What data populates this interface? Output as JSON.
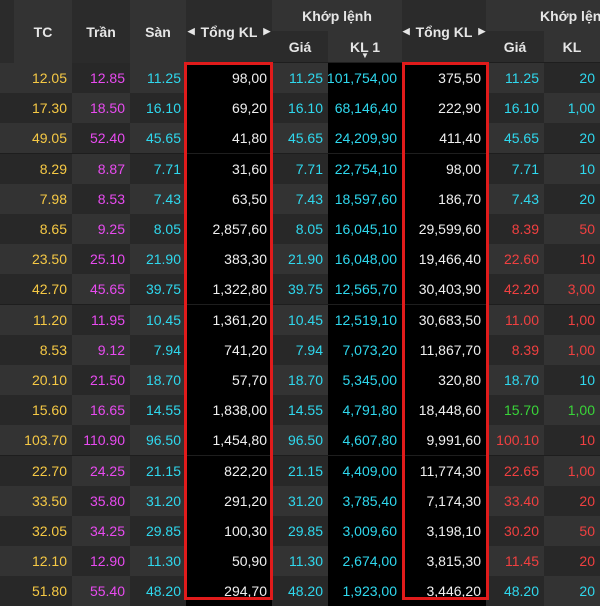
{
  "header": {
    "tc": "TC",
    "tran": "Trần",
    "san": "Sàn",
    "tong_kl_1": "Tổng KL",
    "khop_lenh_1": "Khớp lệnh",
    "gia_1": "Giá",
    "kl1": "KL 1",
    "tong_kl_2": "Tổng KL",
    "khop_lenh_2": "Khớp lệnh",
    "gia_2": "Giá",
    "kl_2": "KL"
  },
  "colors": {
    "ref": "#f6c945",
    "ceiling": "#e84bf0",
    "floor": "#2fd8ee",
    "neutral": "#f0f0f0",
    "down": "#f04040",
    "up": "#39d439",
    "highlight_box": "#e01b1b"
  },
  "rows": [
    {
      "tc": "12.05",
      "tran": "12.85",
      "san": "11.25",
      "tong_kl": "98,00",
      "gia": "11.25",
      "kl1": "101,754,00",
      "tong_kl2": "375,50",
      "gia2": "11.25",
      "gia2_color": "cyan",
      "kl2": "20",
      "kl2_color": "cyan"
    },
    {
      "tc": "17.30",
      "tran": "18.50",
      "san": "16.10",
      "tong_kl": "69,20",
      "gia": "16.10",
      "kl1": "68,146,40",
      "tong_kl2": "222,90",
      "gia2": "16.10",
      "gia2_color": "cyan",
      "kl2": "1,00",
      "kl2_color": "cyan"
    },
    {
      "tc": "49.05",
      "tran": "52.40",
      "san": "45.65",
      "tong_kl": "41,80",
      "gia": "45.65",
      "kl1": "24,209,90",
      "tong_kl2": "411,40",
      "gia2": "45.65",
      "gia2_color": "cyan",
      "kl2": "20",
      "kl2_color": "cyan"
    },
    {
      "tc": "8.29",
      "tran": "8.87",
      "san": "7.71",
      "tong_kl": "31,60",
      "gia": "7.71",
      "kl1": "22,754,10",
      "tong_kl2": "98,00",
      "gia2": "7.71",
      "gia2_color": "cyan",
      "kl2": "10",
      "kl2_color": "cyan"
    },
    {
      "tc": "7.98",
      "tran": "8.53",
      "san": "7.43",
      "tong_kl": "63,50",
      "gia": "7.43",
      "kl1": "18,597,60",
      "tong_kl2": "186,70",
      "gia2": "7.43",
      "gia2_color": "cyan",
      "kl2": "20",
      "kl2_color": "cyan"
    },
    {
      "tc": "8.65",
      "tran": "9.25",
      "san": "8.05",
      "tong_kl": "2,857,60",
      "gia": "8.05",
      "kl1": "16,045,10",
      "tong_kl2": "29,599,60",
      "gia2": "8.39",
      "gia2_color": "red",
      "kl2": "50",
      "kl2_color": "red"
    },
    {
      "tc": "23.50",
      "tran": "25.10",
      "san": "21.90",
      "tong_kl": "383,30",
      "gia": "21.90",
      "kl1": "16,048,00",
      "tong_kl2": "19,466,40",
      "gia2": "22.60",
      "gia2_color": "red",
      "kl2": "10",
      "kl2_color": "red"
    },
    {
      "tc": "42.70",
      "tran": "45.65",
      "san": "39.75",
      "tong_kl": "1,322,80",
      "gia": "39.75",
      "kl1": "12,565,70",
      "tong_kl2": "30,403,90",
      "gia2": "42.20",
      "gia2_color": "red",
      "kl2": "3,00",
      "kl2_color": "red"
    },
    {
      "tc": "11.20",
      "tran": "11.95",
      "san": "10.45",
      "tong_kl": "1,361,20",
      "gia": "10.45",
      "kl1": "12,519,10",
      "tong_kl2": "30,683,50",
      "gia2": "11.00",
      "gia2_color": "red",
      "kl2": "1,00",
      "kl2_color": "red"
    },
    {
      "tc": "8.53",
      "tran": "9.12",
      "san": "7.94",
      "tong_kl": "741,20",
      "gia": "7.94",
      "kl1": "7,073,20",
      "tong_kl2": "11,867,70",
      "gia2": "8.39",
      "gia2_color": "red",
      "kl2": "1,00",
      "kl2_color": "red"
    },
    {
      "tc": "20.10",
      "tran": "21.50",
      "san": "18.70",
      "tong_kl": "57,70",
      "gia": "18.70",
      "kl1": "5,345,00",
      "tong_kl2": "320,80",
      "gia2": "18.70",
      "gia2_color": "cyan",
      "kl2": "10",
      "kl2_color": "cyan"
    },
    {
      "tc": "15.60",
      "tran": "16.65",
      "san": "14.55",
      "tong_kl": "1,838,00",
      "gia": "14.55",
      "kl1": "4,791,80",
      "tong_kl2": "18,448,60",
      "gia2": "15.70",
      "gia2_color": "green",
      "kl2": "1,00",
      "kl2_color": "green"
    },
    {
      "tc": "103.70",
      "tran": "110.90",
      "san": "96.50",
      "tong_kl": "1,454,80",
      "gia": "96.50",
      "kl1": "4,607,80",
      "tong_kl2": "9,991,60",
      "gia2": "100.10",
      "gia2_color": "red",
      "kl2": "10",
      "kl2_color": "red"
    },
    {
      "tc": "22.70",
      "tran": "24.25",
      "san": "21.15",
      "tong_kl": "822,20",
      "gia": "21.15",
      "kl1": "4,409,00",
      "tong_kl2": "11,774,30",
      "gia2": "22.65",
      "gia2_color": "red",
      "kl2": "1,00",
      "kl2_color": "red"
    },
    {
      "tc": "33.50",
      "tran": "35.80",
      "san": "31.20",
      "tong_kl": "291,20",
      "gia": "31.20",
      "kl1": "3,785,40",
      "tong_kl2": "7,174,30",
      "gia2": "33.40",
      "gia2_color": "red",
      "kl2": "20",
      "kl2_color": "red"
    },
    {
      "tc": "32.05",
      "tran": "34.25",
      "san": "29.85",
      "tong_kl": "100,30",
      "gia": "29.85",
      "kl1": "3,009,60",
      "tong_kl2": "3,198,10",
      "gia2": "30.20",
      "gia2_color": "red",
      "kl2": "50",
      "kl2_color": "red"
    },
    {
      "tc": "12.10",
      "tran": "12.90",
      "san": "11.30",
      "tong_kl": "50,90",
      "gia": "11.30",
      "kl1": "2,674,00",
      "tong_kl2": "3,815,30",
      "gia2": "11.45",
      "gia2_color": "red",
      "kl2": "20",
      "kl2_color": "red"
    },
    {
      "tc": "51.80",
      "tran": "55.40",
      "san": "48.20",
      "tong_kl": "294,70",
      "gia": "48.20",
      "kl1": "1,923,00",
      "tong_kl2": "3,446,20",
      "gia2": "48.20",
      "gia2_color": "cyan",
      "kl2": "20",
      "kl2_color": "cyan"
    }
  ]
}
